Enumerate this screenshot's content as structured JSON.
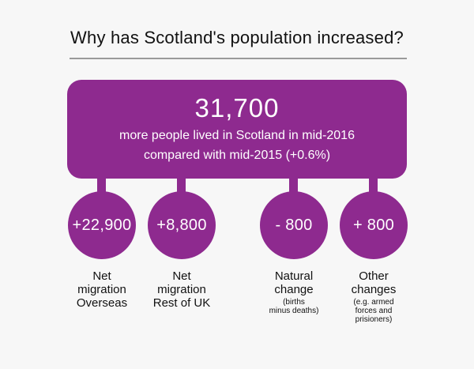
{
  "title": "Why has Scotland's population increased?",
  "summary": {
    "total": "31,700",
    "line1": "more people lived in Scotland in mid-2016",
    "line2": "compared with mid-2015 (+0.6%)"
  },
  "components": [
    {
      "value": "+22,900",
      "label_line1": "Net",
      "label_line2": "migration",
      "label_line3": "Overseas",
      "note_line1": "",
      "note_line2": "",
      "note_line3": ""
    },
    {
      "value": "+8,800",
      "label_line1": "Net",
      "label_line2": "migration",
      "label_line3": "Rest of UK",
      "note_line1": "",
      "note_line2": "",
      "note_line3": ""
    },
    {
      "value": "- 800",
      "label_line1": "Natural",
      "label_line2": "change",
      "label_line3": "",
      "note_line1": "(births",
      "note_line2": "minus deaths)",
      "note_line3": ""
    },
    {
      "value": "+ 800",
      "label_line1": "Other",
      "label_line2": "changes",
      "label_line3": "",
      "note_line1": "(e.g. armed",
      "note_line2": "forces and",
      "note_line3": "prisioners)"
    }
  ],
  "colors": {
    "accent": "#8e2a8f",
    "background": "#f7f7f7",
    "rule": "#9a9a9a"
  }
}
